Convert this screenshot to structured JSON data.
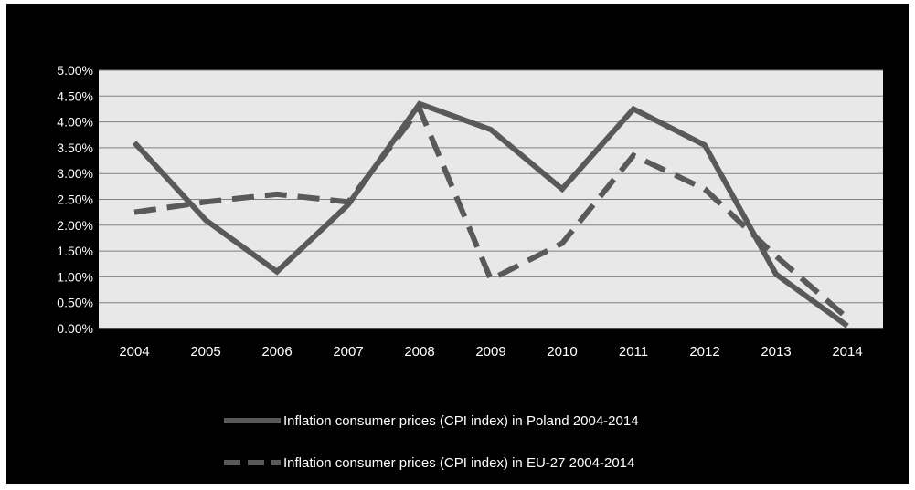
{
  "chart_data": {
    "type": "line",
    "title": "",
    "xlabel": "",
    "ylabel": "",
    "categories": [
      "2004",
      "2005",
      "2006",
      "2007",
      "2008",
      "2009",
      "2010",
      "2011",
      "2012",
      "2013",
      "2014"
    ],
    "ylim": [
      0,
      5
    ],
    "y_ticks": [
      "0.00%",
      "0.50%",
      "1.00%",
      "1.50%",
      "2.00%",
      "2.50%",
      "3.00%",
      "3.50%",
      "4.00%",
      "4.50%",
      "5.00%"
    ],
    "y_unit": "%",
    "grid": true,
    "legend_position": "bottom",
    "colors": {
      "background": "#000000",
      "plot_area": "#e8e8e8",
      "gridline": "#808080",
      "series": "#595959",
      "text": "#ffffff"
    },
    "series": [
      {
        "name": "Inflation consumer prices (CPI index) in Poland 2004-2014",
        "style": "solid",
        "values": [
          3.6,
          2.1,
          1.1,
          2.4,
          4.35,
          3.85,
          2.7,
          4.25,
          3.55,
          1.05,
          0.05
        ]
      },
      {
        "name": "Inflation consumer prices (CPI index) in EU-27 2004-2014",
        "style": "dashed",
        "values": [
          2.25,
          2.45,
          2.6,
          2.45,
          4.25,
          0.95,
          1.65,
          3.35,
          2.7,
          1.4,
          0.2
        ]
      }
    ]
  }
}
